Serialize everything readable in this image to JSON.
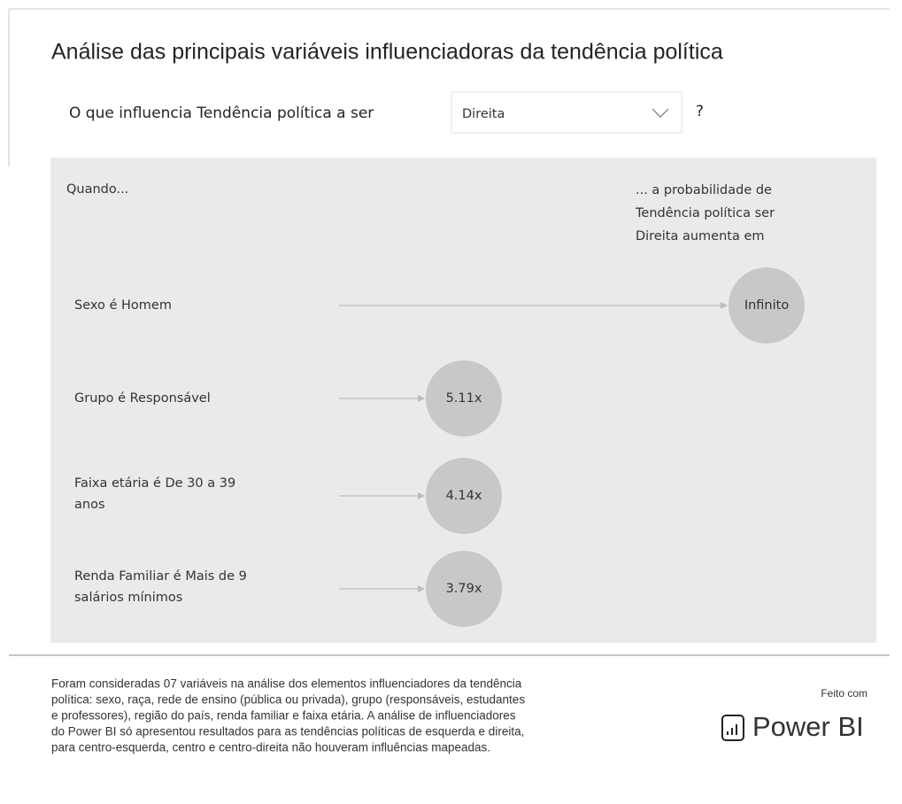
{
  "header": {
    "title": "Análise das principais variáveis influenciadoras da tendência política"
  },
  "question": {
    "prefix": "O que influencia Tendência política a ser",
    "selected": "Direita",
    "suffix": "?"
  },
  "panel": {
    "left_heading": "Quando...",
    "right_heading": [
      "... a probabilidade de",
      "Tendência política ser",
      "Direita aumenta em"
    ]
  },
  "influencers": [
    {
      "label": [
        "Sexo é Homem"
      ],
      "value": "Infinito"
    },
    {
      "label": [
        "Grupo é Responsável"
      ],
      "value": "5.11x"
    },
    {
      "label": [
        "Faixa etária é De 30 a 39",
        "anos"
      ],
      "value": "4.14x"
    },
    {
      "label": [
        "Renda Familiar é Mais de 9",
        "salários mínimos"
      ],
      "value": "3.79x"
    }
  ],
  "footer": {
    "lines": [
      "Foram consideradas 07 variáveis na análise dos elementos influenciadores da tendência",
      "política: sexo, raça, rede de ensino (pública ou privada), grupo (responsáveis, estudantes",
      "e professores), região do país, renda familiar e faixa etária. A análise de influenciadores",
      "do Power BI só apresentou resultados para as tendências políticas de esquerda e direita,",
      "para centro-esquerda, centro e centro-direita não houveram influências mapeadas."
    ],
    "made_with": "Feito com",
    "brand": "Power BI"
  }
}
